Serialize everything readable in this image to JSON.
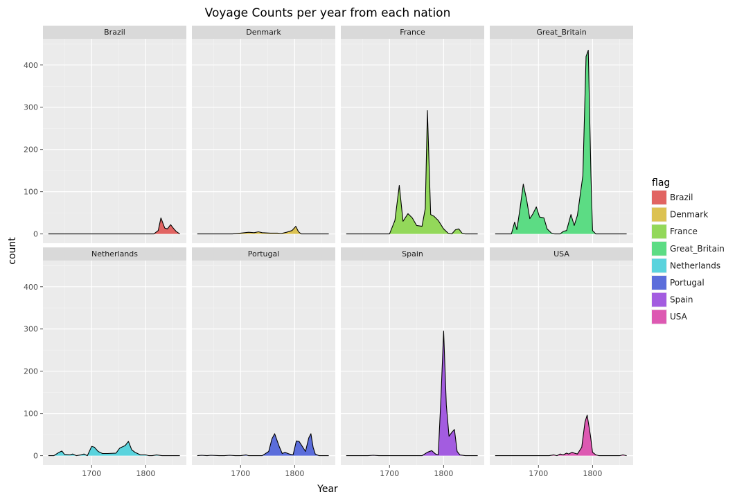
{
  "chart_data": {
    "type": "area",
    "title": "Voyage Counts per year from each nation",
    "xlabel": "Year",
    "ylabel": "count",
    "xlim": [
      1610,
      1875
    ],
    "ylim": [
      -22,
      462
    ],
    "x_ticks": [
      1700,
      1800
    ],
    "y_ticks": [
      0,
      100,
      200,
      300,
      400
    ],
    "grid": true,
    "legend": {
      "title": "flag",
      "position": "right"
    },
    "facets": [
      {
        "name": "Brazil",
        "color": "#e16462",
        "points": [
          [
            1620,
            0
          ],
          [
            1815,
            0
          ],
          [
            1823,
            8
          ],
          [
            1828,
            38
          ],
          [
            1835,
            14
          ],
          [
            1840,
            12
          ],
          [
            1846,
            22
          ],
          [
            1852,
            12
          ],
          [
            1856,
            6
          ],
          [
            1863,
            0
          ]
        ]
      },
      {
        "name": "Denmark",
        "color": "#dcc252",
        "points": [
          [
            1620,
            0
          ],
          [
            1685,
            0
          ],
          [
            1700,
            2
          ],
          [
            1715,
            4
          ],
          [
            1725,
            3
          ],
          [
            1733,
            5
          ],
          [
            1740,
            3
          ],
          [
            1755,
            2
          ],
          [
            1768,
            2
          ],
          [
            1775,
            1
          ],
          [
            1785,
            4
          ],
          [
            1795,
            8
          ],
          [
            1802,
            18
          ],
          [
            1807,
            5
          ],
          [
            1812,
            0
          ],
          [
            1863,
            0
          ]
        ]
      },
      {
        "name": "France",
        "color": "#93d85a",
        "points": [
          [
            1620,
            0
          ],
          [
            1700,
            0
          ],
          [
            1710,
            32
          ],
          [
            1718,
            115
          ],
          [
            1725,
            30
          ],
          [
            1734,
            48
          ],
          [
            1742,
            38
          ],
          [
            1750,
            20
          ],
          [
            1760,
            18
          ],
          [
            1766,
            60
          ],
          [
            1770,
            292
          ],
          [
            1776,
            46
          ],
          [
            1782,
            42
          ],
          [
            1790,
            32
          ],
          [
            1800,
            12
          ],
          [
            1808,
            2
          ],
          [
            1815,
            0
          ],
          [
            1822,
            10
          ],
          [
            1828,
            12
          ],
          [
            1834,
            2
          ],
          [
            1840,
            0
          ],
          [
            1863,
            0
          ]
        ]
      },
      {
        "name": "Great_Britain",
        "color": "#5cdc84",
        "points": [
          [
            1620,
            0
          ],
          [
            1650,
            0
          ],
          [
            1656,
            28
          ],
          [
            1660,
            10
          ],
          [
            1666,
            60
          ],
          [
            1672,
            118
          ],
          [
            1678,
            82
          ],
          [
            1684,
            36
          ],
          [
            1690,
            48
          ],
          [
            1696,
            64
          ],
          [
            1702,
            40
          ],
          [
            1710,
            38
          ],
          [
            1716,
            12
          ],
          [
            1724,
            2
          ],
          [
            1730,
            0
          ],
          [
            1740,
            0
          ],
          [
            1746,
            6
          ],
          [
            1752,
            8
          ],
          [
            1760,
            46
          ],
          [
            1766,
            20
          ],
          [
            1772,
            44
          ],
          [
            1782,
            138
          ],
          [
            1788,
            420
          ],
          [
            1792,
            435
          ],
          [
            1797,
            138
          ],
          [
            1800,
            8
          ],
          [
            1806,
            0
          ],
          [
            1863,
            0
          ]
        ]
      },
      {
        "name": "Netherlands",
        "color": "#5ad3dd",
        "points": [
          [
            1620,
            0
          ],
          [
            1630,
            0
          ],
          [
            1640,
            8
          ],
          [
            1645,
            11
          ],
          [
            1650,
            3
          ],
          [
            1660,
            2
          ],
          [
            1665,
            4
          ],
          [
            1672,
            0
          ],
          [
            1680,
            2
          ],
          [
            1686,
            4
          ],
          [
            1692,
            0
          ],
          [
            1700,
            22
          ],
          [
            1705,
            20
          ],
          [
            1712,
            10
          ],
          [
            1720,
            5
          ],
          [
            1730,
            5
          ],
          [
            1745,
            6
          ],
          [
            1752,
            18
          ],
          [
            1762,
            24
          ],
          [
            1768,
            34
          ],
          [
            1774,
            14
          ],
          [
            1780,
            8
          ],
          [
            1790,
            2
          ],
          [
            1800,
            2
          ],
          [
            1806,
            0
          ],
          [
            1812,
            0
          ],
          [
            1820,
            2
          ],
          [
            1830,
            0
          ],
          [
            1863,
            0
          ]
        ]
      },
      {
        "name": "Portugal",
        "color": "#5b6ddb",
        "points": [
          [
            1620,
            0
          ],
          [
            1628,
            1
          ],
          [
            1638,
            0
          ],
          [
            1645,
            1
          ],
          [
            1660,
            0
          ],
          [
            1670,
            0
          ],
          [
            1680,
            1
          ],
          [
            1690,
            0
          ],
          [
            1700,
            0
          ],
          [
            1710,
            2
          ],
          [
            1715,
            0
          ],
          [
            1740,
            0
          ],
          [
            1752,
            10
          ],
          [
            1758,
            40
          ],
          [
            1763,
            52
          ],
          [
            1768,
            34
          ],
          [
            1772,
            20
          ],
          [
            1777,
            5
          ],
          [
            1782,
            8
          ],
          [
            1790,
            4
          ],
          [
            1797,
            2
          ],
          [
            1803,
            35
          ],
          [
            1808,
            34
          ],
          [
            1814,
            22
          ],
          [
            1820,
            10
          ],
          [
            1826,
            42
          ],
          [
            1830,
            52
          ],
          [
            1834,
            20
          ],
          [
            1838,
            4
          ],
          [
            1845,
            0
          ],
          [
            1863,
            0
          ]
        ]
      },
      {
        "name": "Spain",
        "color": "#a35ce0",
        "points": [
          [
            1620,
            0
          ],
          [
            1660,
            0
          ],
          [
            1670,
            1
          ],
          [
            1680,
            0
          ],
          [
            1700,
            0
          ],
          [
            1760,
            0
          ],
          [
            1770,
            8
          ],
          [
            1778,
            12
          ],
          [
            1785,
            4
          ],
          [
            1790,
            2
          ],
          [
            1795,
            136
          ],
          [
            1800,
            295
          ],
          [
            1805,
            120
          ],
          [
            1810,
            46
          ],
          [
            1815,
            55
          ],
          [
            1820,
            62
          ],
          [
            1825,
            10
          ],
          [
            1830,
            2
          ],
          [
            1840,
            0
          ],
          [
            1863,
            0
          ]
        ]
      },
      {
        "name": "USA",
        "color": "#dd59b2",
        "points": [
          [
            1620,
            0
          ],
          [
            1700,
            0
          ],
          [
            1720,
            0
          ],
          [
            1728,
            2
          ],
          [
            1734,
            0
          ],
          [
            1740,
            4
          ],
          [
            1746,
            2
          ],
          [
            1752,
            6
          ],
          [
            1756,
            4
          ],
          [
            1762,
            8
          ],
          [
            1766,
            6
          ],
          [
            1772,
            4
          ],
          [
            1780,
            20
          ],
          [
            1786,
            80
          ],
          [
            1790,
            96
          ],
          [
            1796,
            48
          ],
          [
            1800,
            8
          ],
          [
            1806,
            2
          ],
          [
            1812,
            0
          ],
          [
            1850,
            0
          ],
          [
            1856,
            2
          ],
          [
            1863,
            0
          ]
        ]
      }
    ]
  }
}
